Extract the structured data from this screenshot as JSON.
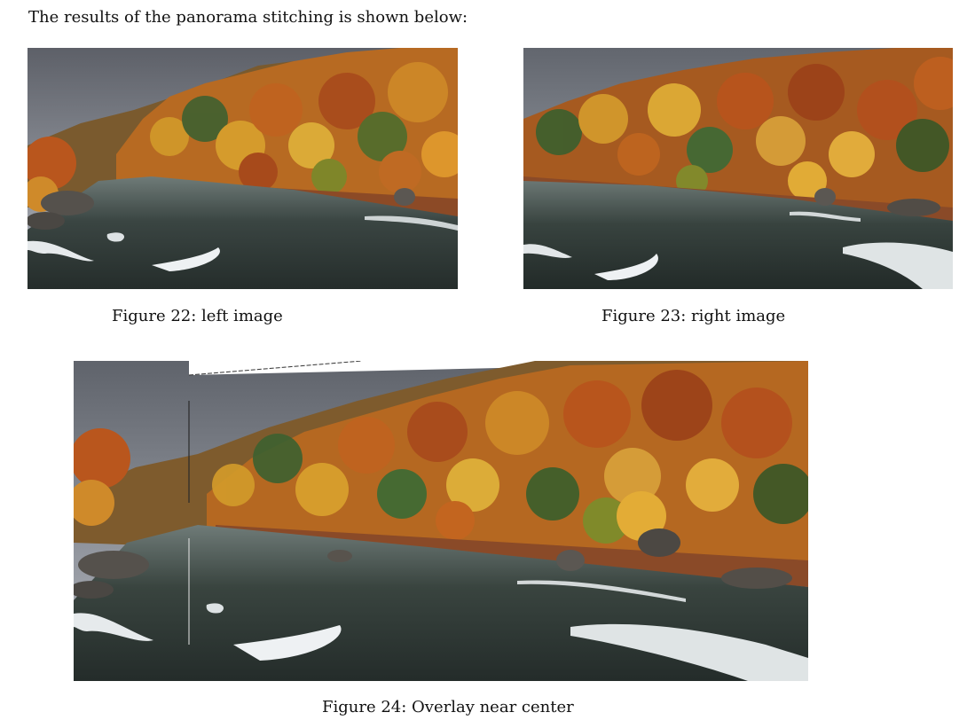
{
  "intro_text": "The results of the panorama stitching is shown below:",
  "figures": [
    {
      "caption": "Figure 22: left image",
      "content": "autumn river photo (left view)"
    },
    {
      "caption": "Figure 23: right image",
      "content": "autumn river photo (right view)"
    },
    {
      "caption": "Figure 24: Overlay near center",
      "content": "stitched panorama of autumn river"
    }
  ],
  "colors": {
    "sky": "#6f737c",
    "sky_light": "#a3a8b2",
    "forest_orange": "#c4721f",
    "forest_yellow": "#d9a22c",
    "forest_green": "#3f5f2a",
    "forest_red": "#a9451d",
    "water_dark": "#2b3431",
    "water_mid": "#4d5a55",
    "foam": "#e8ecef",
    "rock": "#5b5752"
  }
}
